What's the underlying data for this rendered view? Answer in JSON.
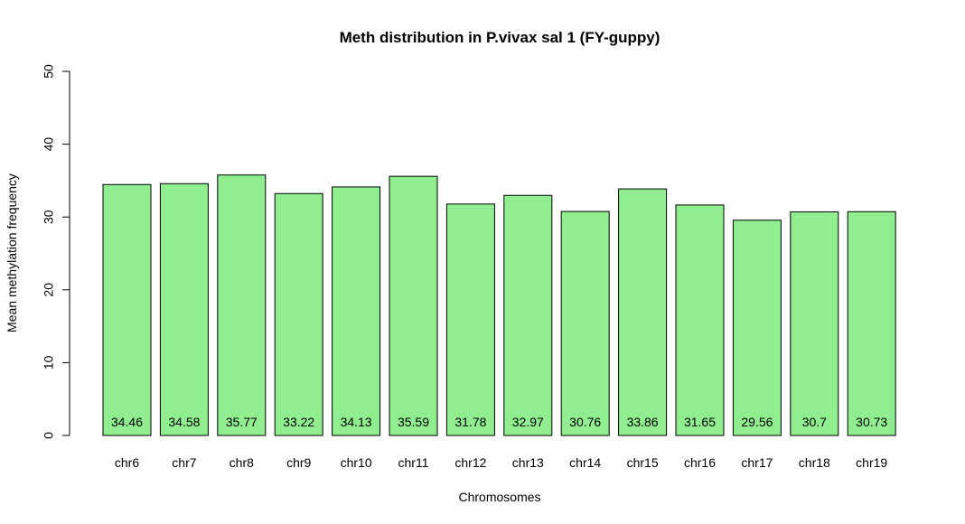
{
  "chart_data": {
    "type": "bar",
    "title": "Meth distribution in P.vivax sal 1 (FY-guppy)",
    "xlabel": "Chromosomes",
    "ylabel": "Mean methylation frequency",
    "ylim": [
      0,
      50
    ],
    "yticks": [
      "0",
      "10",
      "20",
      "30",
      "40",
      "50"
    ],
    "categories": [
      "chr6",
      "chr7",
      "chr8",
      "chr9",
      "chr10",
      "chr11",
      "chr12",
      "chr13",
      "chr14",
      "chr15",
      "chr16",
      "chr17",
      "chr18",
      "chr19"
    ],
    "values": [
      34.46,
      34.58,
      35.77,
      33.22,
      34.13,
      35.59,
      31.78,
      32.97,
      30.76,
      33.86,
      31.65,
      29.56,
      30.7,
      30.73
    ],
    "value_labels": [
      "34.46",
      "34.58",
      "35.77",
      "33.22",
      "34.13",
      "35.59",
      "31.78",
      "32.97",
      "30.76",
      "33.86",
      "31.65",
      "29.56",
      "30.7",
      "30.73"
    ],
    "bar_color": "#90EE90",
    "grid": false,
    "legend": "none"
  }
}
